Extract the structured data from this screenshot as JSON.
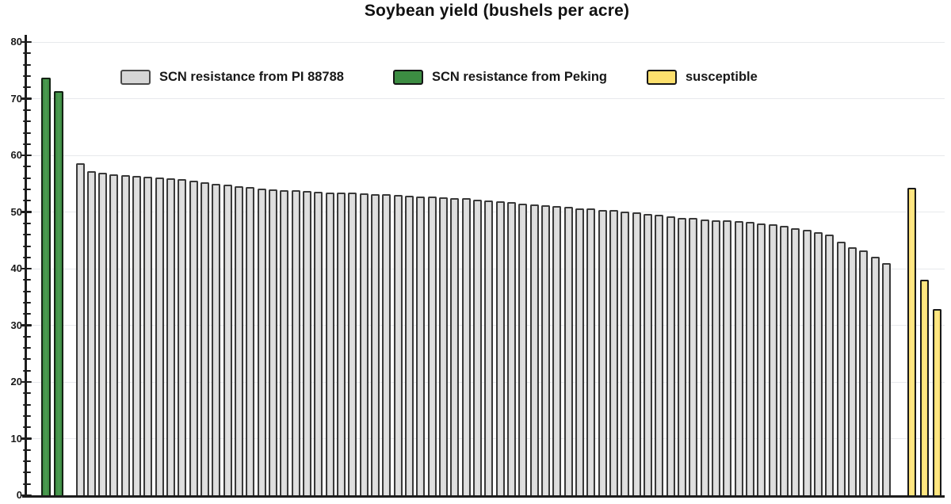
{
  "chart_data": {
    "type": "bar",
    "title": "Soybean yield (bushels per acre)",
    "xlabel": "",
    "ylabel": "",
    "x_tick_labels_visible": false,
    "y_axis": {
      "min": 0,
      "max": 80,
      "major_step": 10,
      "minor_step": 2,
      "labels": [
        "0",
        "10",
        "20",
        "30",
        "40",
        "50",
        "60",
        "70",
        "80"
      ]
    },
    "grid": "horizontal-major",
    "legend_position": "top-inside",
    "legend": [
      {
        "label": "SCN resistance from PI 88788",
        "fill": "#d6d6d6",
        "border": "#4a4a4a"
      },
      {
        "label": "SCN resistance from Peking",
        "fill": "#3c8c42",
        "border": "#151515"
      },
      {
        "label": "susceptible",
        "fill": "#fcdf6d",
        "border": "#151515"
      }
    ],
    "series": [
      {
        "name": "SCN resistance from Peking",
        "key": "peking",
        "fill": "#3c8c42",
        "fill_light": "#4d9c52",
        "border": "#142314",
        "values": [
          73.8,
          71.4
        ]
      },
      {
        "name": "SCN resistance from PI 88788",
        "key": "pi88788",
        "fill": "#d6d6d6",
        "fill_light": "#e2e2e2",
        "border": "#3a3a3a",
        "values": [
          58.6,
          57.2,
          56.9,
          56.7,
          56.5,
          56.4,
          56.3,
          56.1,
          56.0,
          55.8,
          55.5,
          55.2,
          55.0,
          54.8,
          54.6,
          54.4,
          54.2,
          54.0,
          53.9,
          53.8,
          53.7,
          53.6,
          53.5,
          53.4,
          53.4,
          53.3,
          53.2,
          53.1,
          53.0,
          52.9,
          52.8,
          52.7,
          52.6,
          52.5,
          52.4,
          52.2,
          52.1,
          51.9,
          51.7,
          51.5,
          51.4,
          51.2,
          51.0,
          50.9,
          50.7,
          50.6,
          50.4,
          50.3,
          50.1,
          49.9,
          49.7,
          49.5,
          49.3,
          49.0,
          48.9,
          48.7,
          48.6,
          48.5,
          48.4,
          48.2,
          48.0,
          47.8,
          47.5,
          47.2,
          46.8,
          46.4,
          46.0,
          44.8,
          43.8,
          43.2,
          42.1,
          41.0
        ]
      },
      {
        "name": "susceptible",
        "key": "susceptible",
        "fill": "#fcdf6d",
        "fill_light": "#ffe88a",
        "border": "#1a1a1a",
        "values": [
          54.3,
          38.0,
          32.9
        ]
      }
    ]
  }
}
